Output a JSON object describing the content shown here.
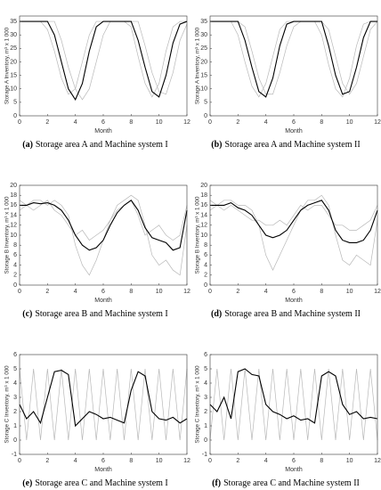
{
  "chart_data": [
    {
      "type": "line",
      "caption_label": "(a)",
      "caption": "Storage area A and Machine system I",
      "xlabel": "Month",
      "ylabel": "Storage A Inventory, m³ x 1 000",
      "x": [
        0,
        0.5,
        1,
        1.5,
        2,
        2.5,
        3,
        3.5,
        4,
        4.5,
        5,
        5.5,
        6,
        6.5,
        7,
        7.5,
        8,
        8.5,
        9,
        9.5,
        10,
        10.5,
        11,
        11.5,
        12
      ],
      "xlim": [
        0,
        12
      ],
      "xticks": [
        0,
        2,
        4,
        6,
        8,
        10,
        12
      ],
      "ylim": [
        0,
        37
      ],
      "yticks": [
        0,
        5,
        10,
        15,
        20,
        25,
        30,
        35
      ],
      "series": [
        {
          "color": "#b8b8b8",
          "values": [
            35,
            35,
            35,
            35,
            35,
            35,
            28,
            18,
            10,
            6,
            10,
            20,
            30,
            35,
            35,
            35,
            35,
            35,
            26,
            16,
            9,
            8,
            16,
            28,
            34
          ]
        },
        {
          "color": "#b8b8b8",
          "values": [
            35,
            35,
            35,
            35,
            32,
            24,
            14,
            8,
            10,
            20,
            30,
            35,
            35,
            35,
            35,
            35,
            33,
            22,
            12,
            7,
            12,
            24,
            33,
            35,
            35
          ]
        },
        {
          "color": "#000000",
          "values": [
            35,
            35,
            35,
            35,
            35,
            30,
            20,
            10,
            6,
            12,
            24,
            33,
            35,
            35,
            35,
            35,
            35,
            28,
            18,
            9,
            7,
            15,
            27,
            34,
            35
          ]
        }
      ]
    },
    {
      "type": "line",
      "caption_label": "(b)",
      "caption": "Storage area A and Machine system II",
      "xlabel": "Month",
      "ylabel": "Storage A Inventory, m³ x 1 000",
      "x": [
        0,
        0.5,
        1,
        1.5,
        2,
        2.5,
        3,
        3.5,
        4,
        4.5,
        5,
        5.5,
        6,
        6.5,
        7,
        7.5,
        8,
        8.5,
        9,
        9.5,
        10,
        10.5,
        11,
        11.5,
        12
      ],
      "xlim": [
        0,
        12
      ],
      "xticks": [
        0,
        2,
        4,
        6,
        8,
        10,
        12
      ],
      "ylim": [
        0,
        37
      ],
      "yticks": [
        0,
        5,
        10,
        15,
        20,
        25,
        30,
        35
      ],
      "series": [
        {
          "color": "#b8b8b8",
          "values": [
            35,
            35,
            35,
            35,
            35,
            33,
            24,
            14,
            8,
            8,
            16,
            26,
            33,
            35,
            35,
            35,
            35,
            32,
            22,
            12,
            8,
            12,
            22,
            32,
            35
          ]
        },
        {
          "color": "#b8b8b8",
          "values": [
            35,
            35,
            35,
            35,
            30,
            20,
            11,
            7,
            12,
            22,
            32,
            35,
            35,
            35,
            35,
            35,
            30,
            19,
            10,
            7,
            14,
            26,
            34,
            35,
            35
          ]
        },
        {
          "color": "#000000",
          "values": [
            35,
            35,
            35,
            35,
            35,
            28,
            18,
            9,
            7,
            14,
            26,
            34,
            35,
            35,
            35,
            35,
            35,
            26,
            15,
            8,
            9,
            18,
            29,
            35,
            35
          ]
        }
      ]
    },
    {
      "type": "line",
      "caption_label": "(c)",
      "caption": "Storage area B and Machine system I",
      "xlabel": "Month",
      "ylabel": "Storage B Inventory, m³ x 1 000",
      "x": [
        0,
        0.5,
        1,
        1.5,
        2,
        2.5,
        3,
        3.5,
        4,
        4.5,
        5,
        5.5,
        6,
        6.5,
        7,
        7.5,
        8,
        8.5,
        9,
        9.5,
        10,
        10.5,
        11,
        11.5,
        12
      ],
      "xlim": [
        0,
        12
      ],
      "xticks": [
        0,
        2,
        4,
        6,
        8,
        10,
        12
      ],
      "ylim": [
        0,
        20
      ],
      "yticks": [
        0,
        2,
        4,
        6,
        8,
        10,
        12,
        14,
        16,
        18,
        20
      ],
      "series": [
        {
          "color": "#b8b8b8",
          "values": [
            17,
            16,
            17,
            17,
            16,
            17,
            16,
            14,
            8,
            4,
            2,
            5,
            9,
            13,
            16,
            17,
            18,
            17,
            12,
            6,
            4,
            5,
            3,
            2,
            12
          ]
        },
        {
          "color": "#b8b8b8",
          "values": [
            15,
            16,
            15,
            16,
            17,
            15,
            14,
            12,
            10,
            11,
            9,
            10,
            11,
            13,
            15,
            16,
            17,
            14,
            10,
            11,
            12,
            10,
            9,
            10,
            16
          ]
        },
        {
          "color": "#000000",
          "values": [
            16,
            16,
            16.5,
            16.3,
            16.5,
            16,
            15,
            13,
            10,
            8,
            7,
            7.5,
            9,
            12,
            14.5,
            16,
            17,
            15,
            11.5,
            9.5,
            9,
            8.5,
            7,
            7.5,
            15
          ]
        }
      ]
    },
    {
      "type": "line",
      "caption_label": "(d)",
      "caption": "Storage area B and Machine system II",
      "xlabel": "Month",
      "ylabel": "Storage B Inventory, m³ x 1 000",
      "x": [
        0,
        0.5,
        1,
        1.5,
        2,
        2.5,
        3,
        3.5,
        4,
        4.5,
        5,
        5.5,
        6,
        6.5,
        7,
        7.5,
        8,
        8.5,
        9,
        9.5,
        10,
        10.5,
        11,
        11.5,
        12
      ],
      "xlim": [
        0,
        12
      ],
      "xticks": [
        0,
        2,
        4,
        6,
        8,
        10,
        12
      ],
      "ylim": [
        0,
        20
      ],
      "yticks": [
        0,
        2,
        4,
        6,
        8,
        10,
        12,
        14,
        16,
        18,
        20
      ],
      "series": [
        {
          "color": "#b8b8b8",
          "values": [
            17,
            16,
            17,
            17,
            16,
            16,
            15,
            12,
            6,
            3,
            6,
            9,
            12,
            15,
            17,
            17,
            18,
            16,
            10,
            5,
            4,
            6,
            5,
            4,
            13
          ]
        },
        {
          "color": "#b8b8b8",
          "values": [
            15,
            16,
            15,
            16,
            15,
            14,
            13,
            13,
            12,
            12,
            13,
            12,
            14,
            16,
            15,
            16,
            16,
            14,
            12,
            12,
            11,
            11,
            12,
            13,
            16
          ]
        },
        {
          "color": "#000000",
          "values": [
            16,
            16,
            16,
            16.5,
            15.5,
            15,
            14,
            12,
            10,
            9.5,
            10,
            11,
            13,
            15,
            16,
            16.5,
            17,
            15,
            11,
            9,
            8.5,
            8.5,
            9,
            11,
            15
          ]
        }
      ]
    },
    {
      "type": "line",
      "caption_label": "(e)",
      "caption": "Storage area C and Machine system I",
      "xlabel": "Month",
      "ylabel": "Storage C Inventory, m³ x 1 000",
      "x": [
        0,
        0.5,
        1,
        1.5,
        2,
        2.5,
        3,
        3.5,
        4,
        4.5,
        5,
        5.5,
        6,
        6.5,
        7,
        7.5,
        8,
        8.5,
        9,
        9.5,
        10,
        10.5,
        11,
        11.5,
        12
      ],
      "xlim": [
        0,
        12
      ],
      "xticks": [
        0,
        2,
        4,
        6,
        8,
        10,
        12
      ],
      "ylim": [
        -1,
        6
      ],
      "yticks": [
        -1,
        0,
        1,
        2,
        3,
        4,
        5,
        6
      ],
      "series": [
        {
          "color": "#b8b8b8",
          "values": [
            5,
            0,
            5,
            0,
            5,
            0,
            5,
            0,
            5,
            0,
            5,
            0,
            5,
            0,
            5,
            0,
            5,
            0,
            5,
            0,
            5,
            0,
            5,
            0,
            5
          ]
        },
        {
          "color": "#000000",
          "values": [
            2.5,
            1.5,
            2,
            1.2,
            3,
            4.8,
            4.9,
            4.6,
            1,
            1.5,
            2,
            1.8,
            1.5,
            1.6,
            1.4,
            1.2,
            3.5,
            4.8,
            4.5,
            2,
            1.5,
            1.4,
            1.6,
            1.2,
            1.5
          ]
        }
      ]
    },
    {
      "type": "line",
      "caption_label": "(f)",
      "caption": "Storage area C and Machine system II",
      "xlabel": "Month",
      "ylabel": "Storage C Inventory, m³ x 1 000",
      "x": [
        0,
        0.5,
        1,
        1.5,
        2,
        2.5,
        3,
        3.5,
        4,
        4.5,
        5,
        5.5,
        6,
        6.5,
        7,
        7.5,
        8,
        8.5,
        9,
        9.5,
        10,
        10.5,
        11,
        11.5,
        12
      ],
      "xlim": [
        0,
        12
      ],
      "xticks": [
        0,
        2,
        4,
        6,
        8,
        10,
        12
      ],
      "ylim": [
        -1,
        6
      ],
      "yticks": [
        -1,
        0,
        1,
        2,
        3,
        4,
        5,
        6
      ],
      "series": [
        {
          "color": "#b8b8b8",
          "values": [
            0,
            5,
            0,
            5,
            0,
            5,
            0,
            5,
            0,
            5,
            0,
            5,
            0,
            5,
            0,
            5,
            0,
            5,
            0,
            5,
            0,
            5,
            0,
            5,
            0
          ]
        },
        {
          "color": "#000000",
          "values": [
            2.5,
            2,
            3,
            1.5,
            4.8,
            5,
            4.6,
            4.5,
            2.5,
            2,
            1.8,
            1.5,
            1.7,
            1.4,
            1.5,
            1.2,
            4.5,
            4.8,
            4.5,
            2.5,
            1.8,
            2,
            1.5,
            1.6,
            1.5
          ]
        }
      ]
    }
  ]
}
